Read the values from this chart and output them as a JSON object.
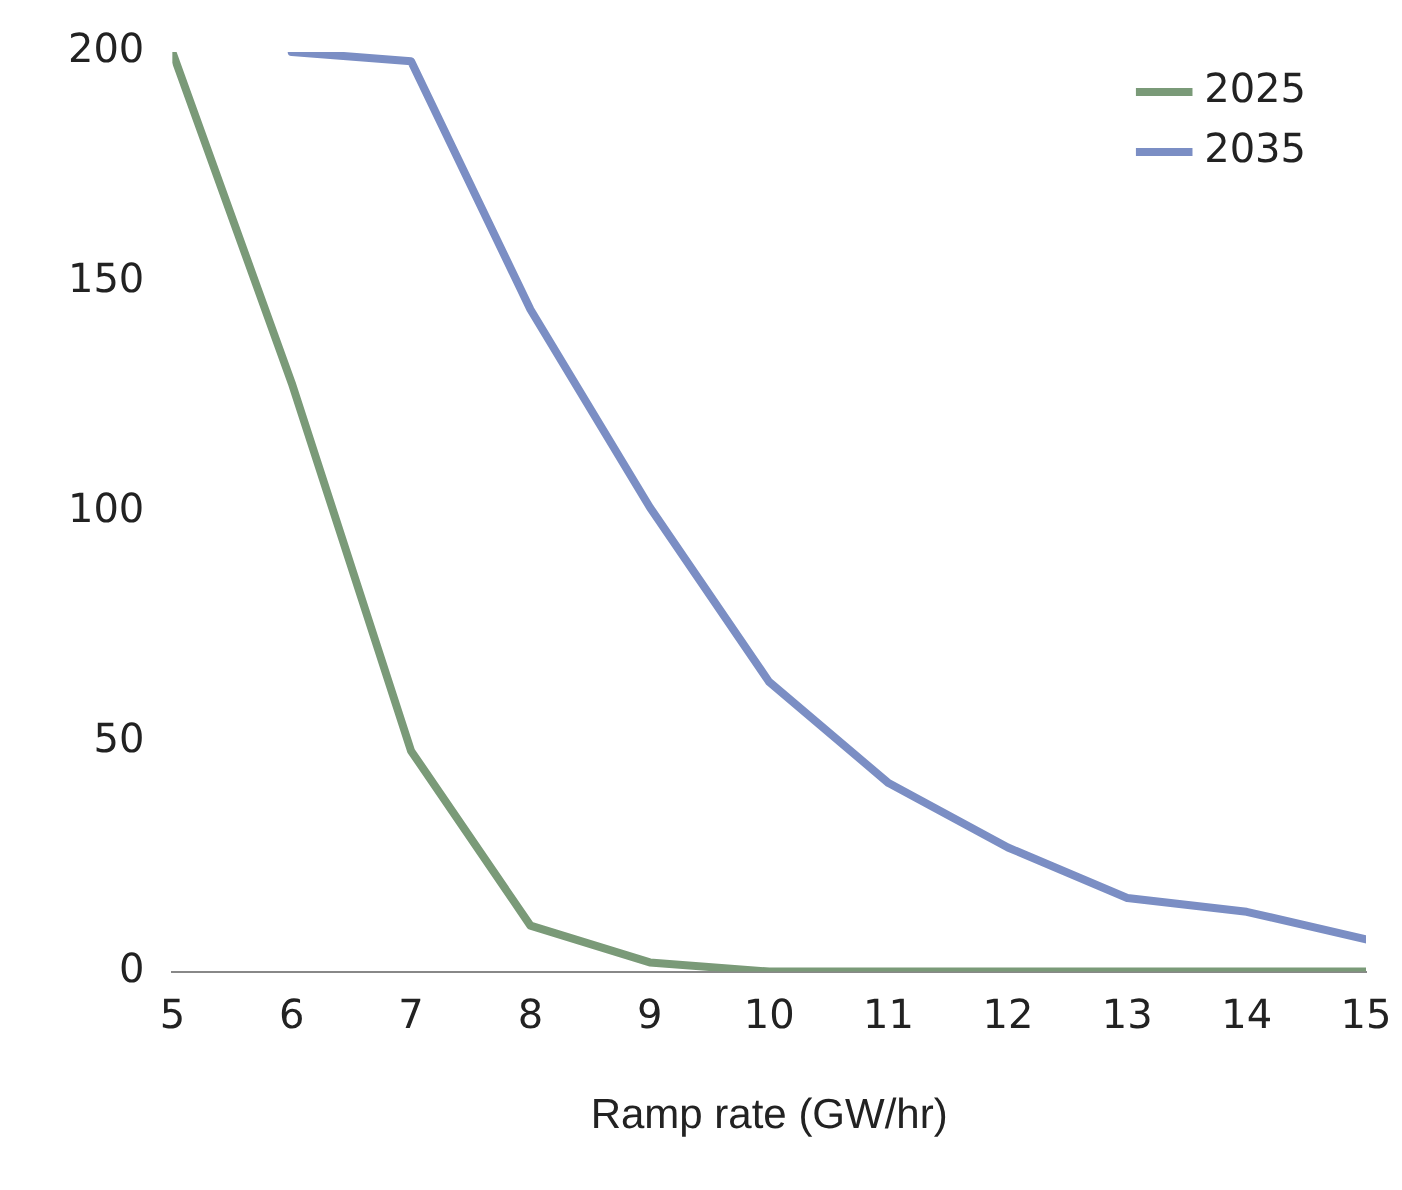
{
  "chart_data": {
    "type": "line",
    "xlabel": "Ramp rate (GW/hr)",
    "x": [
      5,
      6,
      7,
      8,
      9,
      10,
      11,
      12,
      13,
      14,
      15
    ],
    "series": [
      {
        "name": "2025",
        "color": "#7a9a78",
        "values": [
          200,
          128,
          48,
          10,
          2,
          0,
          0,
          0,
          0,
          0,
          0
        ]
      },
      {
        "name": "2035",
        "color": "#7b8ec4",
        "values": [
          null,
          200,
          198,
          144,
          101,
          63,
          41,
          27,
          16,
          13,
          7
        ]
      }
    ],
    "xlim": [
      5,
      15
    ],
    "xticks": [
      5,
      6,
      7,
      8,
      9,
      10,
      11,
      12,
      13,
      14,
      15
    ],
    "ylim": [
      0,
      200
    ],
    "yticks": [
      0,
      50,
      100,
      150,
      200
    ],
    "grid": false,
    "legend": "top right",
    "marker": "none",
    "line_style": "solid"
  }
}
